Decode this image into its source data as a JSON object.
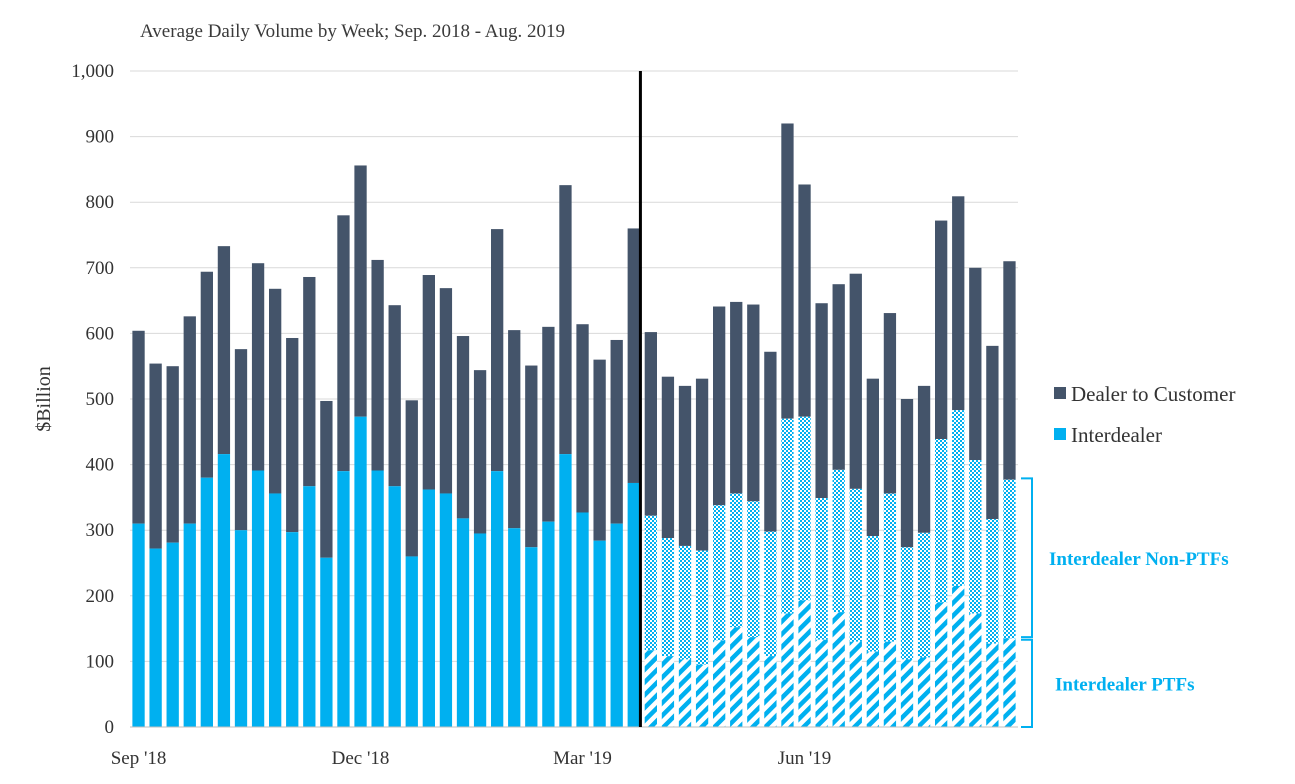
{
  "colors": {
    "dealer_to_customer": "#44546a",
    "interdealer": "#00b0f0",
    "divider": "#000000",
    "grid": "#d9d9d9",
    "annotation": "#00b0f0"
  },
  "chart_data": {
    "type": "bar",
    "stacked": true,
    "title": "Average Daily Volume by Week; Sep. 2018 - Aug. 2019",
    "ylabel": "$Billion",
    "xlabel": "",
    "ylim": [
      0,
      1000
    ],
    "yticks": [
      0,
      100,
      200,
      300,
      400,
      500,
      600,
      700,
      800,
      900,
      1000
    ],
    "ytick_labels": [
      "0",
      "100",
      "200",
      "300",
      "400",
      "500",
      "600",
      "700",
      "800",
      "900",
      "1,000"
    ],
    "grid": true,
    "legend_position": "right",
    "x_tick_labels": [
      {
        "label": "Sep '18",
        "week_index": 0
      },
      {
        "label": "Dec '18",
        "week_index": 13
      },
      {
        "label": "Mar '19",
        "week_index": 26
      },
      {
        "label": "Jun '19",
        "week_index": 39
      }
    ],
    "split_after_week_index": 30,
    "series": [
      {
        "name": "Interdealer",
        "values": [
          310,
          272,
          281,
          310,
          380,
          416,
          300,
          391,
          356,
          297,
          367,
          258,
          390,
          473,
          391,
          367,
          260,
          362,
          356,
          318,
          295,
          390,
          303,
          274,
          313,
          416,
          327,
          284,
          310,
          372,
          322,
          288,
          276,
          269,
          338,
          356,
          344,
          298,
          470,
          473,
          349,
          392,
          363,
          291,
          356,
          274,
          296,
          439,
          483,
          407,
          317,
          377
        ]
      },
      {
        "name": "Dealer to Customer",
        "values": [
          294,
          282,
          269,
          316,
          314,
          317,
          276,
          316,
          312,
          296,
          319,
          239,
          390,
          383,
          321,
          276,
          238,
          327,
          313,
          278,
          249,
          369,
          302,
          277,
          297,
          410,
          287,
          276,
          280,
          388,
          280,
          246,
          244,
          262,
          303,
          292,
          300,
          274,
          450,
          354,
          297,
          283,
          328,
          240,
          275,
          226,
          224,
          333,
          326,
          293,
          264,
          333
        ]
      }
    ],
    "interdealer_ptf_values": [
      117,
      108,
      103,
      95,
      132,
      152,
      137,
      108,
      173,
      193,
      133,
      175,
      130,
      115,
      130,
      103,
      106,
      190,
      215,
      173,
      127,
      135
    ],
    "annotations": [
      {
        "text": "Interdealer Non-PTFs",
        "range": [
          135,
          379
        ]
      },
      {
        "text": "Interdealer PTFs",
        "range": [
          0,
          135
        ]
      }
    ]
  }
}
